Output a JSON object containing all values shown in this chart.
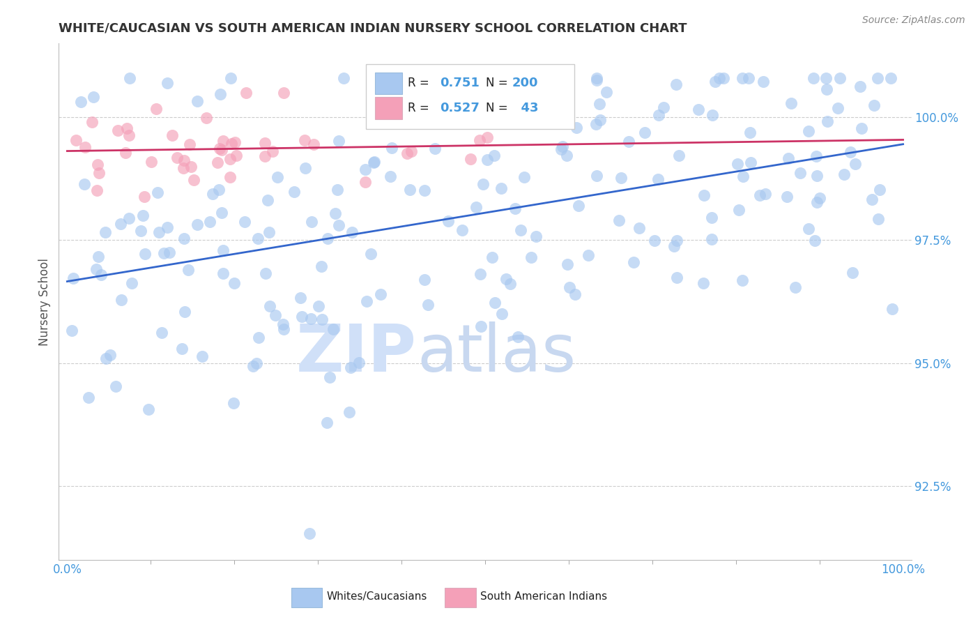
{
  "title": "WHITE/CAUCASIAN VS SOUTH AMERICAN INDIAN NURSERY SCHOOL CORRELATION CHART",
  "source_text": "Source: ZipAtlas.com",
  "ylabel": "Nursery School",
  "blue_R": 0.751,
  "blue_N": 200,
  "pink_R": 0.527,
  "pink_N": 43,
  "blue_color": "#A8C8F0",
  "pink_color": "#F4A0B8",
  "blue_line_color": "#3366CC",
  "pink_line_color": "#CC3366",
  "watermark_zip_color": "#D0E0F8",
  "watermark_atlas_color": "#C8D8F0",
  "legend_label_blue": "Whites/Caucasians",
  "legend_label_pink": "South American Indians",
  "background_color": "#FFFFFF",
  "grid_color": "#CCCCCC",
  "title_color": "#333333",
  "axis_label_color": "#555555",
  "tick_color": "#4499DD",
  "y_min": 91.0,
  "y_max": 101.5,
  "x_min": -0.01,
  "x_max": 1.01,
  "yticks": [
    92.5,
    95.0,
    97.5,
    100.0
  ]
}
